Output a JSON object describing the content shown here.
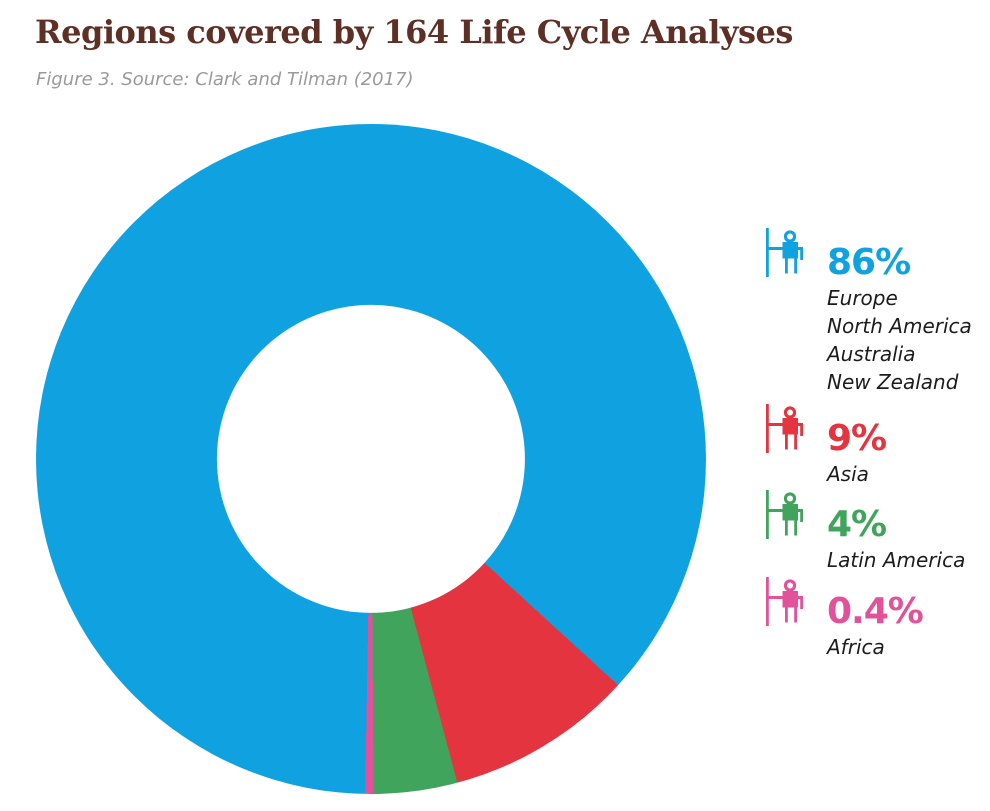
{
  "header": {
    "title": "Regions covered by 164 Life Cycle Analyses",
    "source": "Figure 3. Source: Clark and Tilman (2017)"
  },
  "colors": {
    "title": "#5e2f24",
    "source": "#9a9a9a",
    "europe_group": "#10a2e0",
    "asia": "#e3343f",
    "latin_america": "#41a45d",
    "africa": "#e2529b",
    "background": "#ffffff"
  },
  "legend": {
    "items": [
      {
        "icon": "person-flag-icon",
        "percent_label": "86%",
        "color": "#10a2e0",
        "regions": [
          "Europe",
          "North America",
          "Australia",
          "New Zealand"
        ]
      },
      {
        "icon": "person-flag-icon",
        "percent_label": "9%",
        "color": "#e3343f",
        "regions": [
          "Asia"
        ]
      },
      {
        "icon": "person-flag-icon",
        "percent_label": "4%",
        "color": "#41a45d",
        "regions": [
          "Latin America"
        ]
      },
      {
        "icon": "person-flag-icon",
        "percent_label": "0.4%",
        "color": "#e2529b",
        "regions": [
          "Africa"
        ]
      }
    ]
  },
  "chart_data": {
    "type": "pie",
    "subtype": "donut",
    "title": "Regions covered by 164 Life Cycle Analyses",
    "subtitle": "Figure 3. Source: Clark and Tilman (2017)",
    "total_analyses": 164,
    "start_angle_deg": 181,
    "inner_radius_ratio": 0.46,
    "legend_position": "right",
    "slices": [
      {
        "label": "Europe, North America, Australia, New Zealand",
        "value_pct": 86,
        "color": "#10a2e0"
      },
      {
        "label": "Asia",
        "value_pct": 9,
        "color": "#e3343f"
      },
      {
        "label": "Latin America",
        "value_pct": 4,
        "color": "#41a45d"
      },
      {
        "label": "Africa",
        "value_pct": 0.4,
        "color": "#e2529b"
      }
    ]
  }
}
